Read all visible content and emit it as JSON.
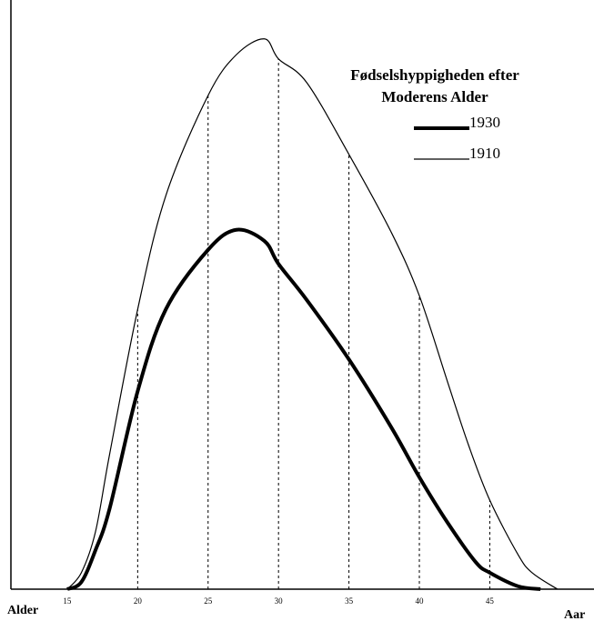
{
  "chart_data": {
    "type": "line",
    "title": [
      "Fødselshyppigheden efter",
      "Moderens Alder"
    ],
    "xlabel": "Alder",
    "xlabel_right": "Aar",
    "xlim": [
      11,
      52.4
    ],
    "ylim": [
      0,
      100
    ],
    "xticks": [
      15,
      20,
      25,
      30,
      35,
      40,
      45
    ],
    "series": [
      {
        "name": "1930",
        "color": "#000000",
        "width": 4,
        "x": [
          15,
          16,
          17,
          18,
          20,
          22,
          25,
          27,
          29,
          30,
          32,
          35,
          38,
          40,
          42,
          44,
          45,
          47,
          48.6
        ],
        "values": [
          0,
          1.2,
          6.6,
          13.6,
          33.6,
          47.5,
          57.6,
          61,
          59.1,
          55.2,
          49.1,
          39,
          27.5,
          19,
          11.3,
          4.6,
          2.8,
          0.5,
          0
        ]
      },
      {
        "name": "1910",
        "color": "#000000",
        "width": 1.2,
        "x": [
          15,
          16,
          17,
          18,
          20,
          22,
          25,
          27,
          29,
          30,
          32,
          35,
          38,
          40,
          42,
          43.5,
          45,
          47,
          48,
          49.8
        ],
        "values": [
          0,
          2.8,
          9.7,
          22.8,
          47.5,
          66.8,
          83.8,
          90.7,
          93.4,
          90,
          86,
          73.8,
          60.6,
          49.8,
          35.2,
          24.4,
          15.1,
          5.9,
          2.8,
          0
        ]
      }
    ],
    "dashed_guides": true
  }
}
